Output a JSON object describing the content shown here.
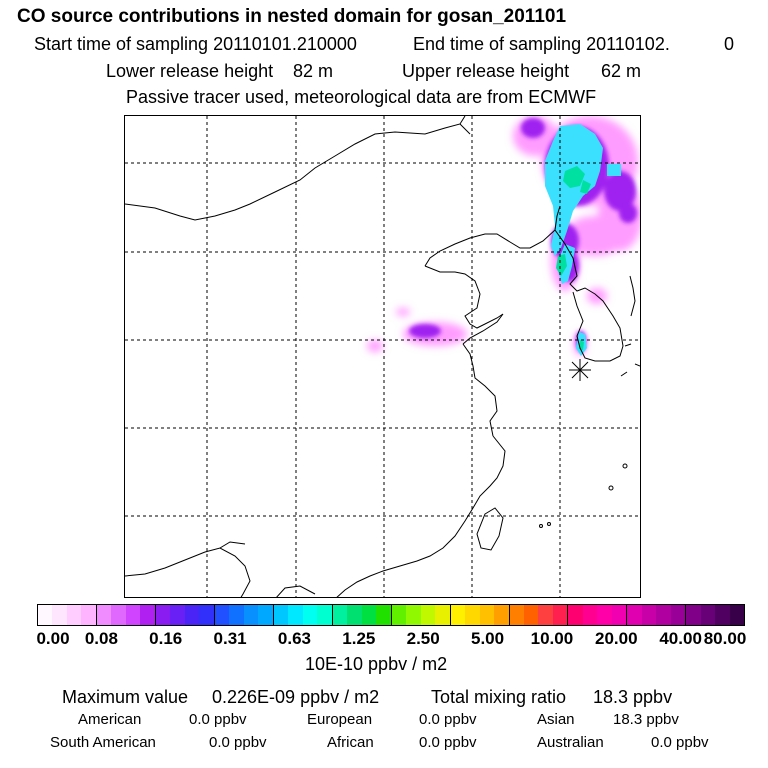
{
  "header": {
    "title": "CO  source contributions in nested domain for gosan_201101",
    "start_label": "Start time of sampling 20110101.210000",
    "end_label": "End time of sampling 20110102.",
    "end_value": "0",
    "lower_label": "Lower release height",
    "lower_value": "82 m",
    "upper_label": "Upper release height",
    "upper_value": "62 m",
    "note": "Passive tracer used, meteorological data are from ECMWF"
  },
  "map": {
    "receptor": "gosan",
    "colors": {
      "coast": "#000000",
      "grid": "#000000",
      "low": "#ff9cff",
      "mid": "#a020f0",
      "high": "#3ce0ff",
      "peak": "#00e0a0"
    }
  },
  "colorbar": {
    "unit_label": "10E-10 ppbv / m2",
    "tick_labels": [
      "0.00",
      "0.08",
      "0.16",
      "0.31",
      "0.63",
      "1.25",
      "2.50",
      "5.00",
      "10.00",
      "20.00",
      "40.00",
      "80.00"
    ],
    "colors": [
      "#fff8ff",
      "#ffe6ff",
      "#ffcdff",
      "#ffb4ff",
      "#f08cff",
      "#e068ff",
      "#d044ff",
      "#b020f0",
      "#8a1cf2",
      "#6820f4",
      "#4a24f6",
      "#3030fa",
      "#2050ff",
      "#1070ff",
      "#0890ff",
      "#00a8ff",
      "#00c8ff",
      "#00e8ff",
      "#00fff0",
      "#00ffd0",
      "#00f0a0",
      "#00e070",
      "#00e040",
      "#20e000",
      "#60f000",
      "#90f800",
      "#c0f800",
      "#e8f000",
      "#fff000",
      "#ffd800",
      "#ffc000",
      "#ffa000",
      "#ff8000",
      "#ff6000",
      "#ff4040",
      "#ff2050",
      "#ff0070",
      "#ff0090",
      "#ff00a8",
      "#f000b0",
      "#e000b0",
      "#c800a8",
      "#b000a0",
      "#980098",
      "#800088",
      "#680078",
      "#500060",
      "#380048"
    ]
  },
  "stats": {
    "max_label": "Maximum value",
    "max_value": "0.226E-09 ppbv / m2",
    "total_label": "Total mixing ratio",
    "total_value": "18.3 ppbv",
    "american_label": "American",
    "american_value": "0.0 ppbv",
    "european_label": "European",
    "european_value": "0.0 ppbv",
    "asian_label": "Asian",
    "asian_value": "18.3 ppbv",
    "south_american_label": "South American",
    "south_american_value": "0.0 ppbv",
    "african_label": "African",
    "african_value": "0.0 ppbv",
    "australian_label": "Australian",
    "australian_value": "0.0 ppbv"
  }
}
